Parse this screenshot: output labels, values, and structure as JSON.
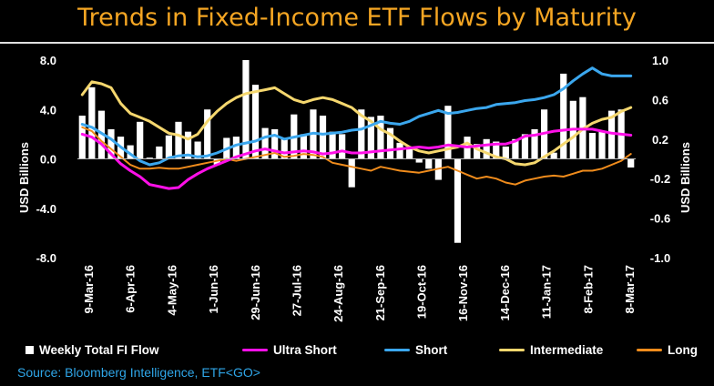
{
  "title": "Trends in Fixed-Income ETF Flows by Maturity",
  "source": "Source: Bloomberg Intelligence, ETF<GO>",
  "colors": {
    "title": "#f5a623",
    "bar": "#ffffff",
    "ultra_short": "#ff10e8",
    "short": "#3ba7ee",
    "intermediate": "#f5d76e",
    "long": "#f08c1c",
    "source": "#2fa6e8"
  },
  "chart_data": {
    "type": "bar",
    "ylabel": "USD Billions",
    "y2label": "USD Billions",
    "ylim": [
      -8,
      8
    ],
    "y2lim": [
      -1,
      1
    ],
    "yticks": [
      "8.0",
      "4.0",
      "0.0",
      "-4.0",
      "-8.0"
    ],
    "y2ticks": [
      "1.0",
      "0.6",
      "0.2",
      "-0.2",
      "-0.6",
      "-1.0"
    ],
    "x_tick_labels": [
      "9-Mar-16",
      "6-Apr-16",
      "4-May-16",
      "1-Jun-16",
      "29-Jun-16",
      "27-Jul-16",
      "24-Aug-16",
      "21-Sep-16",
      "19-Oct-16",
      "16-Nov-16",
      "14-Dec-16",
      "11-Jan-17",
      "8-Feb-17",
      "8-Mar-17"
    ],
    "legend_position": "bottom",
    "series": [
      {
        "name": "Weekly Total FI Flow",
        "type": "bar",
        "axis": "left",
        "values": [
          3.5,
          5.8,
          3.9,
          2.4,
          1.8,
          1.1,
          3.0,
          0.1,
          1.0,
          1.9,
          3.0,
          2.2,
          1.4,
          4.0,
          -0.5,
          1.7,
          1.8,
          8.0,
          6.0,
          2.5,
          2.4,
          1.6,
          3.6,
          2.0,
          4.0,
          3.5,
          2.2,
          2.0,
          -2.3,
          4.0,
          3.4,
          3.5,
          2.5,
          1.3,
          0.9,
          -0.3,
          -0.8,
          -1.7,
          4.3,
          -6.8,
          1.8,
          1.2,
          1.6,
          1.4,
          1.0,
          1.6,
          2.0,
          2.4,
          4.0,
          0.5,
          6.9,
          4.7,
          5.0,
          2.1,
          2.2,
          3.9,
          4.0,
          -0.7
        ]
      },
      {
        "name": "Ultra Short",
        "type": "line",
        "axis": "right",
        "values": [
          0.25,
          0.22,
          0.15,
          0.05,
          -0.05,
          -0.12,
          -0.18,
          -0.26,
          -0.28,
          -0.3,
          -0.29,
          -0.21,
          -0.15,
          -0.1,
          -0.06,
          -0.02,
          0.02,
          0.05,
          0.08,
          0.1,
          0.08,
          0.06,
          0.07,
          0.08,
          0.07,
          0.05,
          0.06,
          0.08,
          0.06,
          0.06,
          0.07,
          0.08,
          0.09,
          0.1,
          0.11,
          0.12,
          0.11,
          0.12,
          0.14,
          0.13,
          0.12,
          0.13,
          0.14,
          0.15,
          0.15,
          0.18,
          0.23,
          0.24,
          0.26,
          0.28,
          0.29,
          0.3,
          0.3,
          0.3,
          0.28,
          0.26,
          0.25,
          0.24
        ]
      },
      {
        "name": "Short",
        "type": "line",
        "axis": "right",
        "values": [
          0.35,
          0.32,
          0.26,
          0.2,
          0.12,
          0.05,
          -0.02,
          -0.06,
          -0.04,
          0.01,
          0.03,
          0.04,
          0.02,
          0.03,
          0.06,
          0.1,
          0.14,
          0.16,
          0.18,
          0.22,
          0.24,
          0.2,
          0.22,
          0.24,
          0.26,
          0.25,
          0.26,
          0.27,
          0.29,
          0.3,
          0.34,
          0.38,
          0.36,
          0.35,
          0.38,
          0.43,
          0.46,
          0.49,
          0.46,
          0.47,
          0.49,
          0.51,
          0.52,
          0.55,
          0.56,
          0.57,
          0.59,
          0.6,
          0.62,
          0.65,
          0.71,
          0.79,
          0.86,
          0.92,
          0.86,
          0.84,
          0.84,
          0.84
        ]
      },
      {
        "name": "Intermediate",
        "type": "line",
        "axis": "right",
        "values": [
          0.65,
          0.78,
          0.76,
          0.72,
          0.56,
          0.46,
          0.42,
          0.38,
          0.32,
          0.26,
          0.24,
          0.2,
          0.25,
          0.38,
          0.48,
          0.56,
          0.62,
          0.66,
          0.68,
          0.7,
          0.72,
          0.66,
          0.6,
          0.57,
          0.6,
          0.62,
          0.6,
          0.56,
          0.52,
          0.44,
          0.38,
          0.3,
          0.25,
          0.18,
          0.12,
          0.08,
          0.06,
          0.08,
          0.1,
          0.12,
          0.16,
          0.1,
          0.06,
          0.02,
          0.0,
          -0.05,
          -0.06,
          -0.04,
          0.02,
          0.08,
          0.15,
          0.22,
          0.3,
          0.36,
          0.4,
          0.42,
          0.48,
          0.52
        ]
      },
      {
        "name": "Long",
        "type": "line",
        "axis": "right",
        "values": [
          0.32,
          0.28,
          0.18,
          0.1,
          0.02,
          -0.06,
          -0.1,
          -0.1,
          -0.09,
          -0.1,
          -0.1,
          -0.08,
          -0.06,
          -0.04,
          -0.02,
          0.0,
          -0.02,
          0.0,
          0.02,
          0.04,
          0.06,
          0.02,
          0.03,
          0.05,
          0.04,
          0.02,
          -0.04,
          -0.06,
          -0.08,
          -0.1,
          -0.12,
          -0.08,
          -0.1,
          -0.12,
          -0.13,
          -0.14,
          -0.12,
          -0.1,
          -0.08,
          -0.12,
          -0.16,
          -0.2,
          -0.18,
          -0.2,
          -0.24,
          -0.26,
          -0.22,
          -0.2,
          -0.18,
          -0.17,
          -0.18,
          -0.15,
          -0.12,
          -0.12,
          -0.1,
          -0.06,
          -0.02,
          0.05
        ]
      }
    ]
  }
}
